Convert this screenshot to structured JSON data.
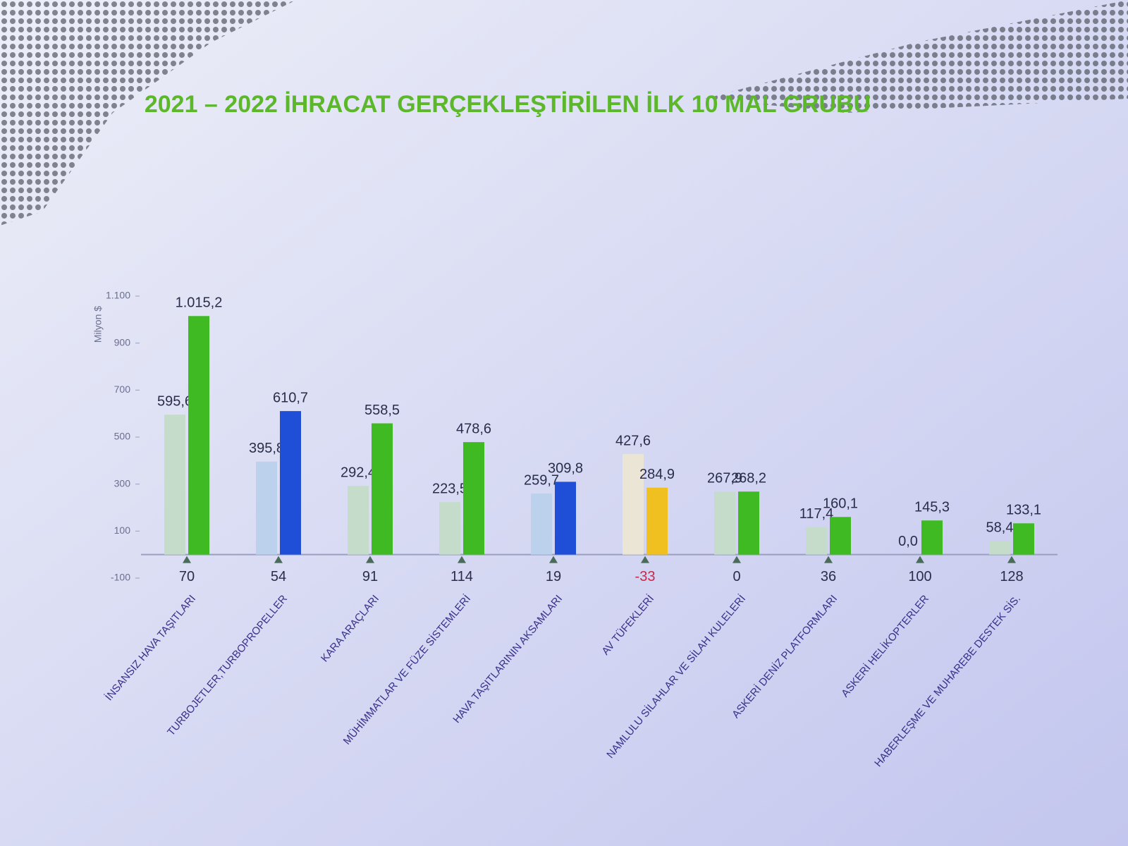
{
  "chart_data": {
    "type": "bar",
    "title": "2021 – 2022 İHRACAT GERÇEKLEŞTİRİLEN İLK 10 MAL GRUBU",
    "y_label": "Milyon $",
    "categories": [
      "İNSANSIZ HAVA TAŞITLARI",
      "TURBOJETLER,TURBOPROPELLER",
      "KARA ARAÇLARI",
      "MÜHİMMATLAR VE FÜZE SİSTEMLERİ",
      "HAVA TAŞITLARININ AKSAMLARI",
      "AV TÜFEKLERİ",
      "NAMLULU SİLAHLAR VE SİLAH KULELERİ",
      "ASKERİ DENİZ PLATFORMLARI",
      "ASKERİ HELİKOPTERLER",
      "HABERLEŞME VE MUHAREBE DESTEK SİS."
    ],
    "series": [
      {
        "name": "2021",
        "colors": [
          "#c6dccb",
          "#bcd1ec",
          "#c6dccb",
          "#c6dccb",
          "#bcd1ec",
          "#ebe5d6",
          "#c6dccb",
          "#c6dccb",
          "#c6dccb",
          "#c6dccb"
        ],
        "values": [
          595.6,
          395.8,
          292.4,
          223.5,
          259.7,
          427.6,
          267.9,
          117.4,
          0.0,
          58.4
        ],
        "value_labels": [
          "595,6",
          "395,8",
          "292,4",
          "223,5",
          "259,7",
          "427,6",
          "267,9",
          "117,4",
          "0,0",
          "58,4"
        ]
      },
      {
        "name": "2022",
        "colors": [
          "#3fba22",
          "#1f4fd6",
          "#3fba22",
          "#3fba22",
          "#1f4fd6",
          "#f0c020",
          "#3fba22",
          "#3fba22",
          "#3fba22",
          "#3fba22"
        ],
        "values": [
          1015.2,
          610.7,
          558.5,
          478.6,
          309.8,
          284.9,
          268.2,
          160.1,
          145.3,
          133.1
        ],
        "value_labels": [
          "1.015,2",
          "610,7",
          "558,5",
          "478,6",
          "309,8",
          "284,9",
          "268,2",
          "160,1",
          "145,3",
          "133,1"
        ]
      }
    ],
    "changes": [
      70,
      54,
      91,
      114,
      19,
      -33,
      0,
      36,
      100,
      128
    ],
    "negative_change_color": "#c8284a",
    "ylim": [
      -100,
      1100
    ],
    "yticks": [
      -100,
      100,
      300,
      500,
      700,
      900,
      {
        "value": 1100,
        "label": "1.100"
      }
    ]
  }
}
